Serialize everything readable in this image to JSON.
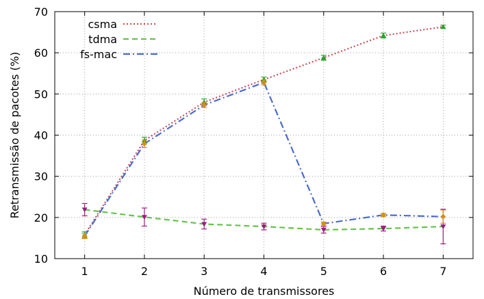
{
  "chart_data": {
    "type": "line",
    "title": "",
    "xlabel": "Número de transmissores",
    "ylabel": "Retransmissão de pacotes (%)",
    "x": [
      1,
      2,
      3,
      4,
      5,
      6,
      7
    ],
    "xlim": [
      0.5,
      7.5
    ],
    "ylim": [
      10,
      70
    ],
    "xticks": [
      1,
      2,
      3,
      4,
      5,
      6,
      7
    ],
    "yticks": [
      10,
      20,
      30,
      40,
      50,
      60,
      70
    ],
    "grid": true,
    "legend_position": "top-left",
    "series": [
      {
        "name": "csma",
        "color": "#c8505a",
        "line_style": "dotted",
        "marker_color": "#2ca02c",
        "values": [
          15.8,
          38.7,
          48.0,
          53.5,
          58.8,
          64.2,
          66.3
        ],
        "errors": [
          0.7,
          0.8,
          0.8,
          0.6,
          0.6,
          0.6,
          0.4
        ]
      },
      {
        "name": "tdma",
        "color": "#66c24a",
        "line_style": "dashed",
        "marker_color": "#9a1f7a",
        "values": [
          21.9,
          20.1,
          18.4,
          17.8,
          17.0,
          17.3,
          17.8
        ],
        "errors": [
          1.5,
          2.2,
          1.2,
          0.8,
          0.8,
          0.6,
          4.2
        ]
      },
      {
        "name": "fs-mac",
        "color": "#4a6ad0",
        "line_style": "dashdot",
        "marker_color": "#d09010",
        "values": [
          15.5,
          37.9,
          47.3,
          52.8,
          18.5,
          20.6,
          20.2
        ],
        "errors": [
          0.6,
          0.9,
          0.6,
          0.6,
          0.4,
          0.4,
          1.6
        ]
      }
    ]
  }
}
